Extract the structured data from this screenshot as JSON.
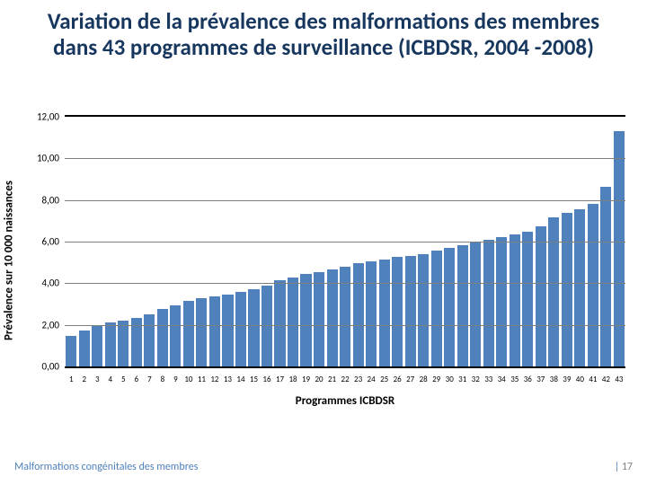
{
  "title": "Variation de la prévalence des malformations des membres dans 43 programmes de surveillance (ICBDSR, 2004 -2008)",
  "title_fontsize": 25,
  "title_color": "#17375e",
  "footer_left": "Malformations congénitales des membres",
  "footer_sep": "|",
  "footer_page": "17",
  "footer_fontsize": 12,
  "footer_color": "#4f81bd",
  "footer_page_color": "#808080",
  "chart": {
    "type": "bar",
    "ylabel": "Prévalence sur 10 000 naissances",
    "xlabel": "Programmes ICBDSR",
    "label_fontsize": 13,
    "tick_fontsize": 11,
    "xtick_fontsize": 9,
    "ylim": [
      0,
      12
    ],
    "ytick_step": 2,
    "yticks": [
      "0,00",
      "2,00",
      "4,00",
      "6,00",
      "8,00",
      "10,00",
      "12,00"
    ],
    "categories": [
      "1",
      "2",
      "3",
      "4",
      "5",
      "6",
      "7",
      "8",
      "9",
      "10",
      "11",
      "12",
      "13",
      "14",
      "15",
      "16",
      "17",
      "18",
      "19",
      "20",
      "21",
      "22",
      "23",
      "24",
      "25",
      "26",
      "27",
      "28",
      "29",
      "30",
      "31",
      "32",
      "33",
      "34",
      "35",
      "36",
      "37",
      "38",
      "39",
      "40",
      "41",
      "42",
      "43"
    ],
    "values": [
      1.45,
      1.72,
      1.98,
      2.1,
      2.2,
      2.35,
      2.5,
      2.75,
      2.92,
      3.15,
      3.28,
      3.35,
      3.45,
      3.57,
      3.7,
      3.88,
      4.15,
      4.28,
      4.45,
      4.55,
      4.65,
      4.8,
      4.95,
      5.05,
      5.12,
      5.25,
      5.32,
      5.4,
      5.58,
      5.7,
      5.82,
      5.95,
      6.1,
      6.22,
      6.35,
      6.48,
      6.75,
      7.15,
      7.4,
      7.55,
      7.82,
      8.65,
      11.3
    ],
    "bar_color": "#4f81bd",
    "background_color": "#ffffff",
    "axis_color": "#000000",
    "grid_color": "#7f7f7f"
  }
}
